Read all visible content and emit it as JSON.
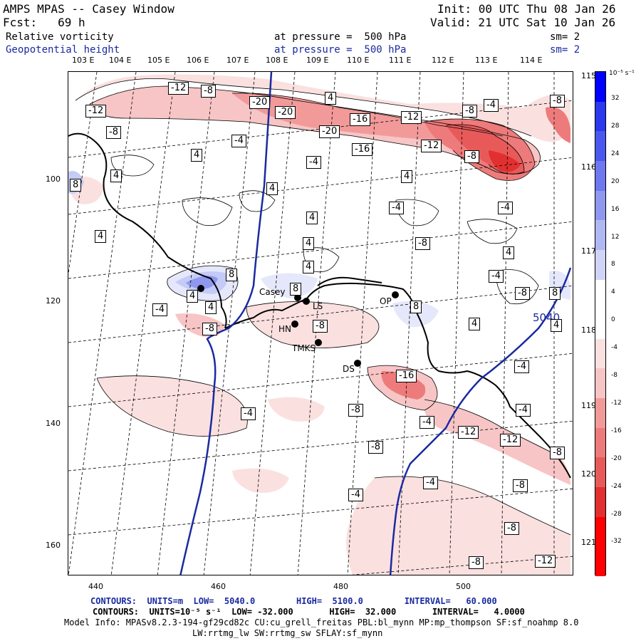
{
  "header": {
    "title": "AMPS MPAS -- Casey Window",
    "init": "Init: 00 UTC Thu 08 Jan 26",
    "fcst": "Fcst:   69 h",
    "valid": "Valid: 21 UTC Sat 10 Jan 26",
    "field1": "Relative vorticity",
    "field1_pressure": "at pressure =  500 hPa",
    "field1_sm": "sm= 2",
    "field2": "Geopotential height",
    "field2_pressure": "at pressure =  500 hPa",
    "field2_sm": "sm= 2"
  },
  "longitudes_top": [
    "103 E",
    "104 E",
    "105 E",
    "106 E",
    "107 E",
    "108 E",
    "109 E",
    "110 E",
    "111 E",
    "112 E",
    "113 E",
    "114 E"
  ],
  "longitudes_right": [
    "115 E",
    "116 E",
    "117 E",
    "118 E",
    "119 E",
    "120 E",
    "121 E"
  ],
  "y_ticks": [
    "100",
    "120",
    "140",
    "160"
  ],
  "x_ticks": [
    "440",
    "460",
    "480",
    "500"
  ],
  "stations": [
    "Casey",
    "LS",
    "OP",
    "HN",
    "TMKS",
    "DS"
  ],
  "height_label": "5040",
  "contour_labels": {
    "neg4": "-4",
    "neg8": "-8",
    "neg12": "-12",
    "neg16": "-16",
    "neg20": "-20",
    "pos4": "4",
    "pos8": "8"
  },
  "colorbar": {
    "units": "10⁻⁵ s⁻¹",
    "ticks": [
      "32",
      "28",
      "24",
      "20",
      "16",
      "12",
      "8",
      "4",
      "0",
      "-4",
      "-8",
      "-12",
      "-16",
      "-20",
      "-24",
      "-28",
      "-32"
    ]
  },
  "footer": {
    "contours1": "CONTOURS:  UNITS=m  LOW=  5040.0        HIGH=  5100.0        INTERVAL=   60.000",
    "contours2": "CONTOURS:  UNITS=10⁻⁵ s⁻¹  LOW= -32.000       HIGH=  32.000       INTERVAL=   4.0000",
    "model_info": "Model Info: MPASv8.2.3-194-gf29cd82c CU:cu_grell_freitas PBL:bl_mynn MP:mp_thompson SF:sf_noahmp 8.0",
    "model_info2": "LW:rrtmg_lw SW:rrtmg_sw SFLAY:sf_mynn"
  },
  "colors": {
    "contour_blue": "#1a2aa0",
    "pos_max": "#0000ff",
    "neg_max": "#ff0000"
  }
}
